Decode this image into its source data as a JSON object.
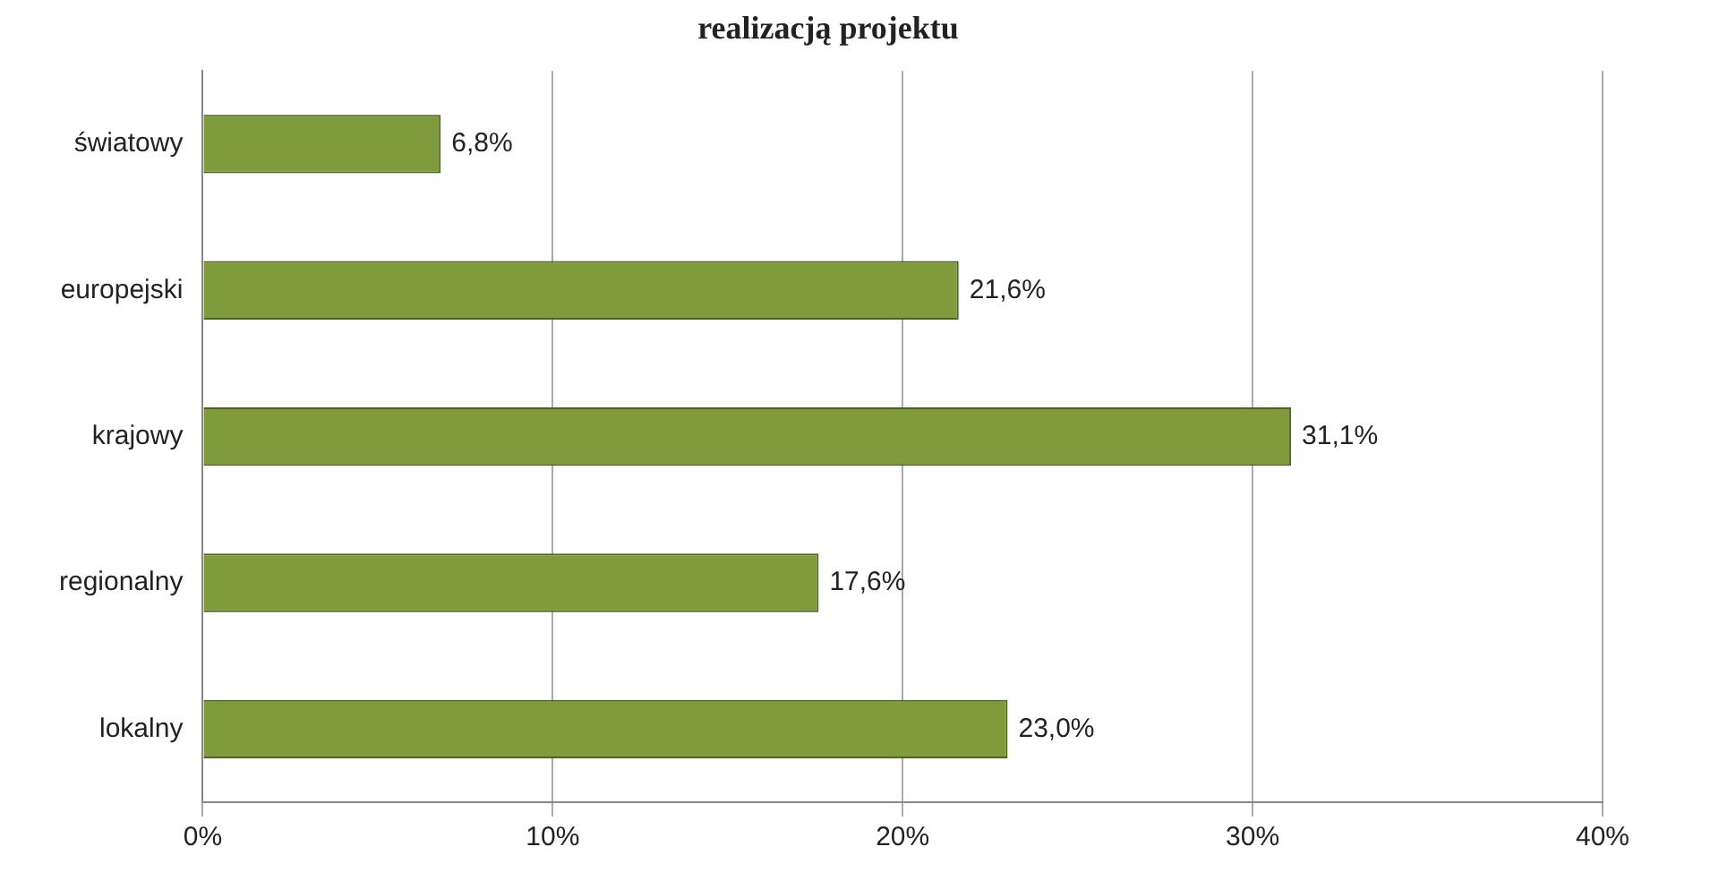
{
  "chart_data": {
    "type": "bar",
    "orientation": "horizontal",
    "title": "realizacją projektu",
    "categories": [
      "światowy",
      "europejski",
      "krajowy",
      "regionalny",
      "lokalny"
    ],
    "values": [
      6.8,
      21.6,
      31.1,
      17.6,
      23.0
    ],
    "value_labels": [
      "6,8%",
      "21,6%",
      "31,1%",
      "17,6%",
      "23,0%"
    ],
    "color": "#7f9b3c",
    "xlim": [
      0,
      40
    ],
    "xticks": [
      {
        "value": 0,
        "label": "0%"
      },
      {
        "value": 10,
        "label": "10%"
      },
      {
        "value": 20,
        "label": "20%"
      },
      {
        "value": 30,
        "label": "30%"
      },
      {
        "value": 40,
        "label": "40%"
      }
    ],
    "grid": "x",
    "legend": false
  }
}
